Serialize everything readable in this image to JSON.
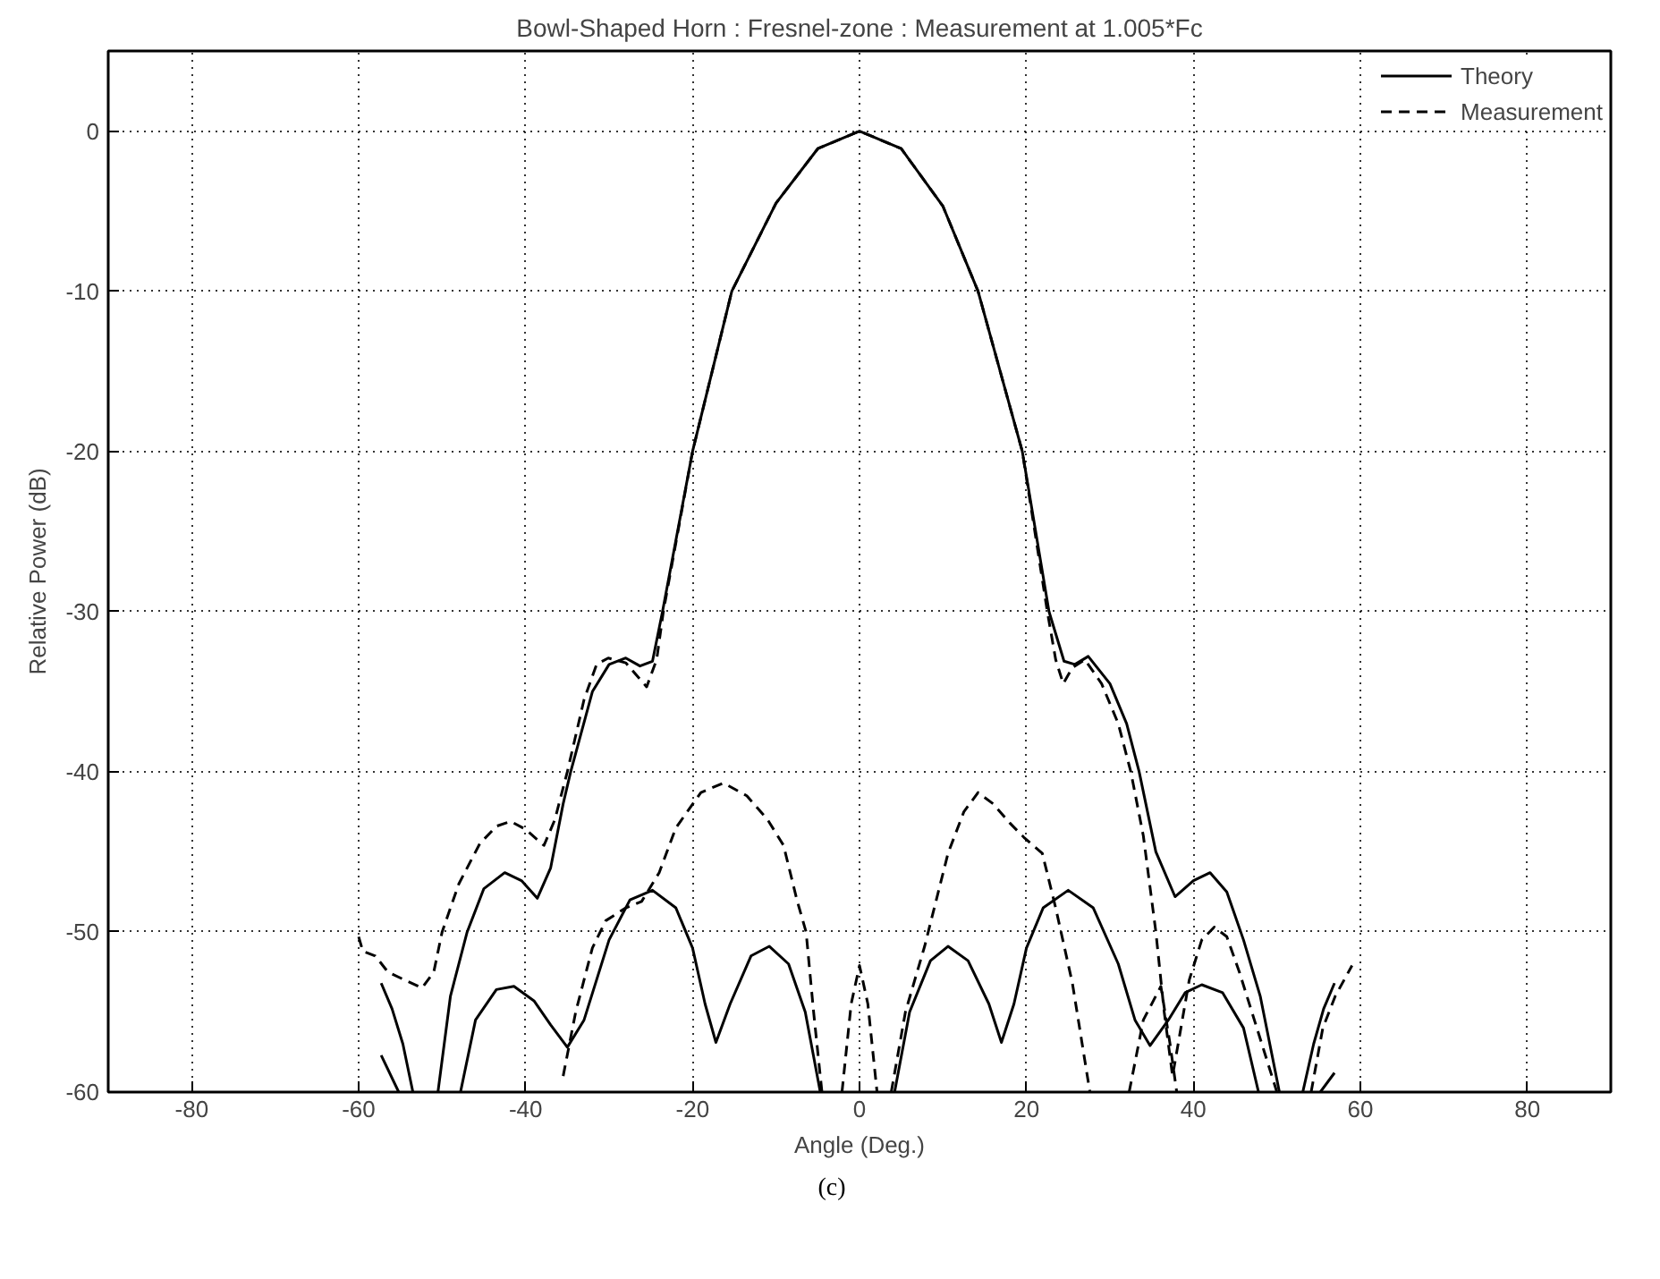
{
  "chart_data": {
    "type": "line",
    "title": "Bowl-Shaped Horn : Fresnel-zone : Measurement at 1.005*Fc",
    "xlabel": "Angle (Deg.)",
    "ylabel": "Relative Power (dB)",
    "xlim": [
      -90,
      90
    ],
    "ylim": [
      -60,
      5
    ],
    "xticks": [
      -80,
      -60,
      -40,
      -20,
      0,
      20,
      40,
      60,
      80
    ],
    "yticks": [
      -60,
      -50,
      -40,
      -30,
      -20,
      -10,
      0
    ],
    "grid": true,
    "legend": "top right",
    "annotations": [
      "(c)"
    ],
    "series": [
      {
        "name": "Theory",
        "color": "#000000",
        "line_style": "solid",
        "x": [
          -57.3,
          -56,
          -54.7,
          -53.5,
          null,
          -50.5,
          -49,
          -47,
          -45,
          -42.5,
          -40.5,
          -38.6,
          -37,
          -35.5,
          -34.6,
          -32,
          -30,
          -28,
          -26.3,
          -24.8,
          -23.6,
          -20,
          -15.3,
          -10,
          -5,
          0,
          5,
          10,
          14.2,
          19.5,
          22.7,
          24.5,
          25.8,
          27.4,
          30,
          32,
          33.5,
          35.5,
          37.8,
          40,
          42,
          44,
          46,
          48,
          50.3,
          null,
          53.1,
          54.4,
          55.6,
          56.9
        ],
        "values": [
          -53.2,
          -54.8,
          -57,
          -60,
          null,
          -60,
          -54,
          -50,
          -47.3,
          -46.3,
          -46.8,
          -47.9,
          -46,
          -42,
          -40,
          -35,
          -33.3,
          -32.9,
          -33.4,
          -33.1,
          -30,
          -20,
          -10,
          -4.5,
          -1.1,
          0,
          -1.1,
          -4.7,
          -10,
          -20,
          -30,
          -33.1,
          -33.3,
          -32.8,
          -34.5,
          -37,
          -40,
          -45,
          -47.8,
          -46.8,
          -46.3,
          -47.5,
          -50.5,
          -54,
          -60,
          null,
          -60,
          -57,
          -54.8,
          -53.2
        ]
      },
      {
        "name": "Measurement",
        "color": "#000000",
        "line_style": "dashed",
        "x": [
          -60,
          -59.5,
          -58,
          -56.5,
          -54.5,
          -52.4,
          -51,
          -50,
          -48,
          -45.5,
          -43.5,
          -41.8,
          -40,
          -37.8,
          -36.5,
          -35,
          -33,
          -31.5,
          -30.1,
          -28,
          -25.5,
          -24.3,
          -23.5,
          -20,
          -15.3,
          -10,
          -5,
          0,
          5,
          10,
          14.2,
          19.5,
          22.5,
          23.5,
          24.4,
          25.5,
          27,
          29,
          31,
          32.5,
          34,
          35.5,
          36.5,
          37.5,
          38.5,
          39.5,
          41,
          42.5,
          44,
          45.5,
          47,
          48.5,
          50,
          null,
          54.1,
          55.5,
          57,
          59
        ],
        "values": [
          -50.3,
          -51.2,
          -51.5,
          -52.5,
          -53,
          -53.5,
          -52.5,
          -50,
          -47,
          -44.5,
          -43.4,
          -43.1,
          -43.6,
          -44.6,
          -43,
          -40,
          -35.5,
          -33.3,
          -32.9,
          -33.2,
          -34.7,
          -33,
          -30,
          -20,
          -10,
          -4.5,
          -1.1,
          0,
          -1.1,
          -4.7,
          -10,
          -20,
          -30,
          -33,
          -34.5,
          -33.5,
          -33,
          -34.5,
          -37,
          -40,
          -44,
          -50,
          -55,
          -59,
          -56,
          -53,
          -50.5,
          -49.7,
          -50.3,
          -52.5,
          -55,
          -57.5,
          -60,
          null,
          -60,
          -56,
          -54,
          -52.1
        ]
      },
      {
        "color": "#000000",
        "line_style": "solid",
        "x": [
          -57.3,
          -55.2,
          null,
          -47.8,
          -46,
          -43.5,
          -41.4,
          -39,
          -37,
          -35,
          -33,
          -30,
          -27.5,
          -24.8,
          -22,
          -20,
          -18.5,
          -17.2,
          -15.5,
          -13,
          -10.8,
          -8.5,
          -6.5,
          -4.7,
          null,
          4.2,
          6,
          8.5,
          10.6,
          13,
          15.5,
          17,
          18.5,
          20,
          22,
          25,
          28,
          31,
          33,
          34.8,
          37,
          39,
          41,
          43.5,
          46,
          47.8,
          null,
          55.2,
          56.9
        ],
        "values": [
          -57.7,
          -60,
          null,
          -60,
          -55.5,
          -53.6,
          -53.4,
          -54.3,
          -55.8,
          -57.2,
          -55.5,
          -50.5,
          -48,
          -47.4,
          -48.5,
          -51,
          -54.5,
          -56.9,
          -54.5,
          -51.5,
          -50.9,
          -52,
          -55,
          -60,
          null,
          -60,
          -55,
          -51.8,
          -50.9,
          -51.8,
          -54.5,
          -56.9,
          -54.5,
          -51,
          -48.5,
          -47.4,
          -48.5,
          -52,
          -55.5,
          -57.1,
          -55.5,
          -53.8,
          -53.3,
          -53.8,
          -56,
          -60,
          null,
          -60,
          -58.8
        ]
      },
      {
        "color": "#000000",
        "line_style": "dashed",
        "x": [
          -35.5,
          -34,
          -32,
          -30.4,
          -28,
          -26.1,
          -24,
          -22,
          -19,
          -16.3,
          -13.5,
          -11,
          -9.1,
          -7.5,
          -6.4,
          -5.5,
          -4.5,
          null,
          -2.1,
          -1,
          0,
          1,
          2.1,
          null,
          3.8,
          5.5,
          7.8,
          10.6,
          12.5,
          14.2,
          16,
          18,
          19.7,
          21.9,
          23.5,
          25.5,
          27.6,
          null,
          32.3,
          34,
          36.1,
          37.2,
          38
        ],
        "values": [
          -59,
          -55,
          -51,
          -49.3,
          -48.5,
          -48.1,
          -46.3,
          -43.5,
          -41.3,
          -40.7,
          -41.5,
          -43,
          -44.6,
          -48,
          -50,
          -55,
          -60,
          null,
          -60,
          -54.5,
          -52.1,
          -54.5,
          -60,
          null,
          -60,
          -55,
          -50.9,
          -45.1,
          -42.5,
          -41.3,
          -42,
          -43.2,
          -44.1,
          -45.1,
          -48.5,
          -53.2,
          -60,
          null,
          -60,
          -55.5,
          -53.4,
          -57,
          -60
        ]
      }
    ]
  }
}
